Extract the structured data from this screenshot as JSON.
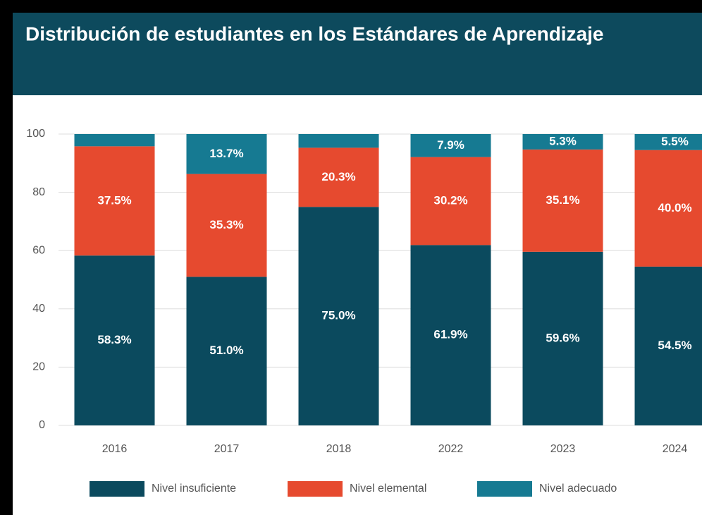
{
  "chart_data": {
    "type": "stacked_bar",
    "title": "Distribución de estudiantes en los Estándares de Aprendizaje",
    "categories": [
      "2016",
      "2017",
      "2018",
      "2022",
      "2023",
      "2024"
    ],
    "series": [
      {
        "name": "Nivel insuficiente",
        "color": "#0b4a5e",
        "values": [
          58.3,
          51.0,
          75.0,
          61.9,
          59.6,
          54.5
        ],
        "value_labels": [
          "58.3%",
          "51.0%",
          "75.0%",
          "61.9%",
          "59.6%",
          "54.5%"
        ]
      },
      {
        "name": "Nivel elemental",
        "color": "#e64a2f",
        "values": [
          37.5,
          35.3,
          20.3,
          30.2,
          35.1,
          40.0
        ],
        "value_labels": [
          "37.5%",
          "35.3%",
          "20.3%",
          "30.2%",
          "35.1%",
          "40.0%"
        ]
      },
      {
        "name": "Nivel adecuado",
        "color": "#167a92",
        "values": [
          4.2,
          13.7,
          4.7,
          7.9,
          5.3,
          5.5
        ],
        "value_labels": [
          null,
          "13.7%",
          null,
          "7.9%",
          "5.3%",
          "5.5%"
        ]
      }
    ],
    "ylim": [
      0,
      100
    ],
    "yticks": [
      0,
      20,
      40,
      60,
      80,
      100
    ],
    "grid": true
  }
}
